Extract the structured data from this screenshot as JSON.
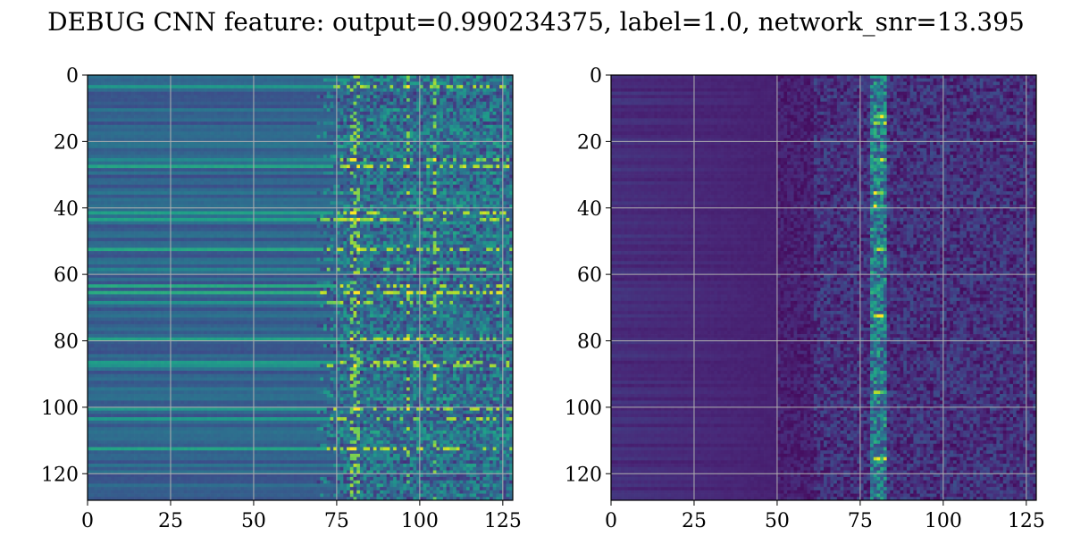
{
  "title": "DEBUG CNN feature: output=0.990234375, label=1.0, network_snr=13.395",
  "chart_data": [
    {
      "type": "heatmap",
      "grid": true,
      "colormap": "viridis",
      "shape": [
        128,
        128
      ],
      "xlim": [
        0,
        128
      ],
      "ylim": [
        128,
        0
      ],
      "xticks": [
        0,
        25,
        50,
        75,
        100,
        125
      ],
      "yticks": [
        0,
        20,
        40,
        60,
        80,
        100,
        120
      ],
      "bright_rows": [
        3,
        25,
        27,
        41,
        43,
        52,
        58,
        63,
        65,
        68,
        79,
        86,
        87,
        100,
        103,
        112
      ],
      "bright_cols": [
        79,
        80,
        81,
        96,
        104
      ]
    },
    {
      "type": "heatmap",
      "grid": true,
      "colormap": "viridis",
      "shape": [
        128,
        128
      ],
      "xlim": [
        0,
        128
      ],
      "ylim": [
        128,
        0
      ],
      "xticks": [
        0,
        25,
        50,
        75,
        100,
        125
      ],
      "yticks": [
        0,
        20,
        40,
        60,
        80,
        100,
        120
      ],
      "bright_rows": [
        12,
        14,
        25,
        35,
        39,
        52,
        72,
        95,
        115
      ],
      "bright_cols": [
        80,
        81
      ]
    }
  ]
}
